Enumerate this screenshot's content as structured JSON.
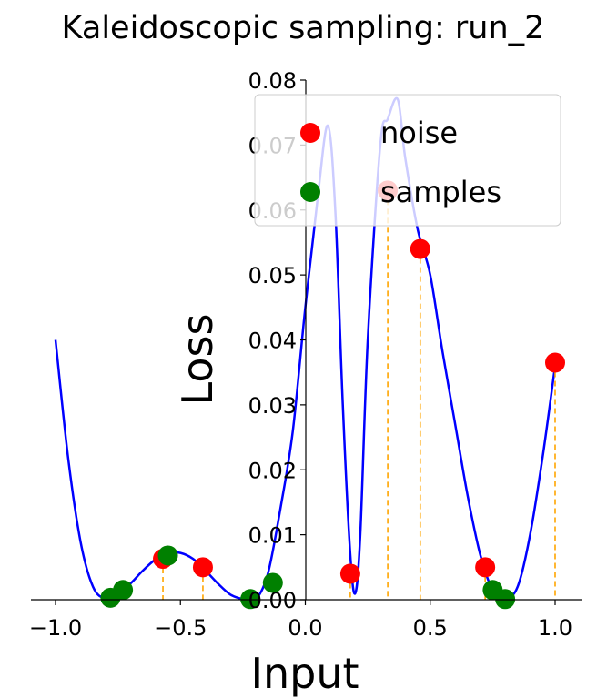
{
  "chart_data": {
    "type": "line",
    "title": "Kaleidoscopic sampling: run_2",
    "xlabel": "Input",
    "ylabel": "Loss",
    "xlim": [
      -1.1,
      1.1
    ],
    "ylim": [
      0.0,
      0.08
    ],
    "x_ticks": [
      -1.0,
      -0.5,
      0.0,
      0.5,
      1.0
    ],
    "x_tick_labels": [
      "−1.0",
      "−0.5",
      "0.0",
      "0.5",
      "1.0"
    ],
    "y_ticks": [
      0.0,
      0.01,
      0.02,
      0.03,
      0.04,
      0.05,
      0.06,
      0.07,
      0.08
    ],
    "y_tick_labels": [
      "0.00",
      "0.01",
      "0.02",
      "0.03",
      "0.04",
      "0.05",
      "0.06",
      "0.07",
      "0.08"
    ],
    "grid": false,
    "legend_position": "top-right",
    "series": [
      {
        "name": "",
        "kind": "line",
        "color": "#0000ff",
        "x": [
          -1.0,
          -0.95,
          -0.9,
          -0.85,
          -0.8,
          -0.75,
          -0.7,
          -0.65,
          -0.6,
          -0.55,
          -0.5,
          -0.45,
          -0.4,
          -0.35,
          -0.3,
          -0.25,
          -0.2,
          -0.15,
          -0.1,
          -0.05,
          0.0,
          0.05,
          0.09,
          0.12,
          0.15,
          0.18,
          0.2,
          0.22,
          0.25,
          0.3,
          0.33,
          0.37,
          0.4,
          0.45,
          0.5,
          0.55,
          0.6,
          0.65,
          0.7,
          0.75,
          0.8,
          0.85,
          0.9,
          0.95,
          1.0
        ],
        "y": [
          0.04,
          0.022,
          0.009,
          0.002,
          0.0002,
          0.001,
          0.0025,
          0.0045,
          0.0062,
          0.0072,
          0.0072,
          0.0063,
          0.0045,
          0.0025,
          0.0008,
          0.0001,
          0.0,
          0.004,
          0.014,
          0.026,
          0.045,
          0.062,
          0.073,
          0.06,
          0.03,
          0.007,
          0.001,
          0.01,
          0.04,
          0.07,
          0.074,
          0.077,
          0.068,
          0.057,
          0.05,
          0.038,
          0.027,
          0.016,
          0.007,
          0.0015,
          0.0002,
          0.002,
          0.01,
          0.022,
          0.036
        ]
      },
      {
        "name": "noise",
        "kind": "scatter",
        "color": "#ff0000",
        "stems": true,
        "x": [
          -0.57,
          -0.41,
          0.18,
          0.33,
          0.46,
          0.72,
          1.0
        ],
        "y": [
          0.0063,
          0.005,
          0.004,
          0.063,
          0.054,
          0.005,
          0.0365
        ]
      },
      {
        "name": "samples",
        "kind": "scatter",
        "color": "#008000",
        "stems": false,
        "x": [
          -0.78,
          -0.73,
          -0.55,
          -0.22,
          -0.13,
          0.75,
          0.8
        ],
        "y": [
          0.0003,
          0.0015,
          0.0068,
          0.0001,
          0.0026,
          0.0015,
          0.0001
        ]
      }
    ]
  }
}
